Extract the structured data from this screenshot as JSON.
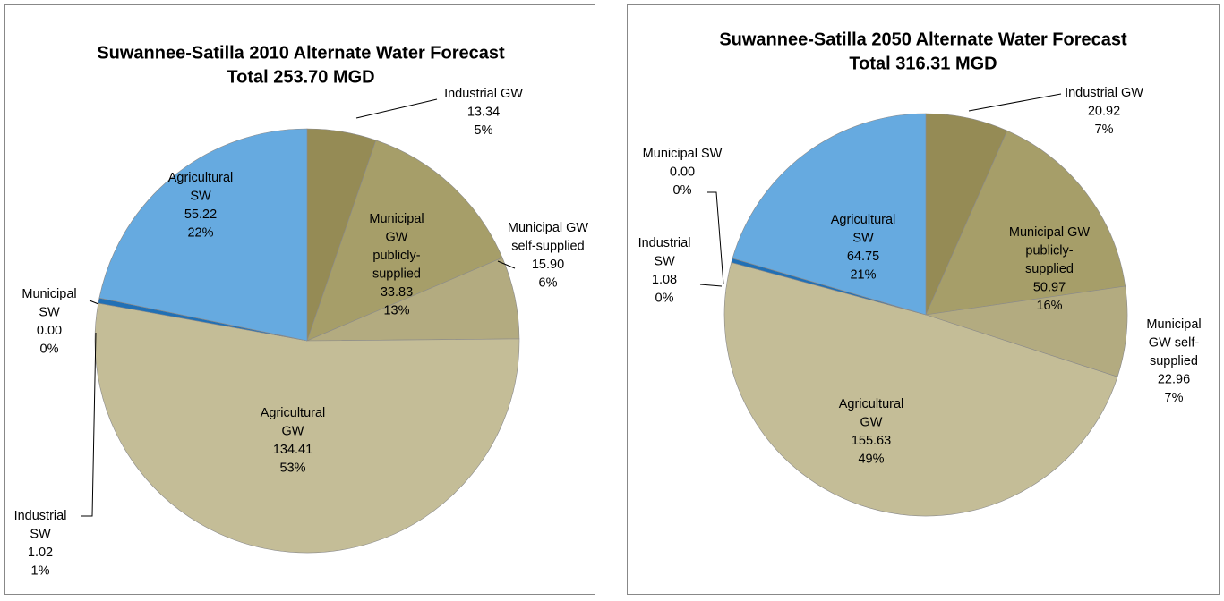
{
  "chart_data": [
    {
      "type": "pie",
      "title": "Suwannee-Satilla 2010 Alternate Water Forecast",
      "subtitle": "Total 253.70 MGD",
      "categories": [
        "Industrial GW",
        "Municipal\nGW\npublicly-\nsupplied",
        "Municipal GW\nself-supplied",
        "Agricultural\nGW",
        "Industrial\nSW",
        "Municipal\nSW",
        "Agricultural\nSW"
      ],
      "values": [
        13.34,
        33.83,
        15.9,
        134.41,
        1.02,
        0.0,
        55.22
      ],
      "value_labels": [
        "13.34",
        "33.83",
        "15.90",
        "134.41",
        "1.02",
        "0.00",
        "55.22"
      ],
      "percent_labels": [
        "5%",
        "13%",
        "6%",
        "53%",
        "1%",
        "0%",
        "22%"
      ],
      "colors": [
        "#958b55",
        "#a69e69",
        "#b3ab80",
        "#c4bd97",
        "#2170b5",
        "#8ec3ea",
        "#66aae0"
      ]
    },
    {
      "type": "pie",
      "title": "Suwannee-Satilla 2050 Alternate Water Forecast",
      "subtitle": "Total 316.31 MGD",
      "categories": [
        "Industrial GW",
        "Municipal GW\npublicly-\nsupplied",
        "Municipal\nGW self-\nsupplied",
        "Agricultural\nGW",
        "Industrial\nSW",
        "Municipal SW",
        "Agricultural\nSW"
      ],
      "values": [
        20.92,
        50.97,
        22.96,
        155.63,
        1.08,
        0.0,
        64.75
      ],
      "value_labels": [
        "20.92",
        "50.97",
        "22.96",
        "155.63",
        "1.08",
        "0.00",
        "64.75"
      ],
      "percent_labels": [
        "7%",
        "16%",
        "7%",
        "49%",
        "0%",
        "0%",
        "21%"
      ],
      "colors": [
        "#958b55",
        "#a69e69",
        "#b3ab80",
        "#c4bd97",
        "#2170b5",
        "#8ec3ea",
        "#66aae0"
      ]
    }
  ]
}
